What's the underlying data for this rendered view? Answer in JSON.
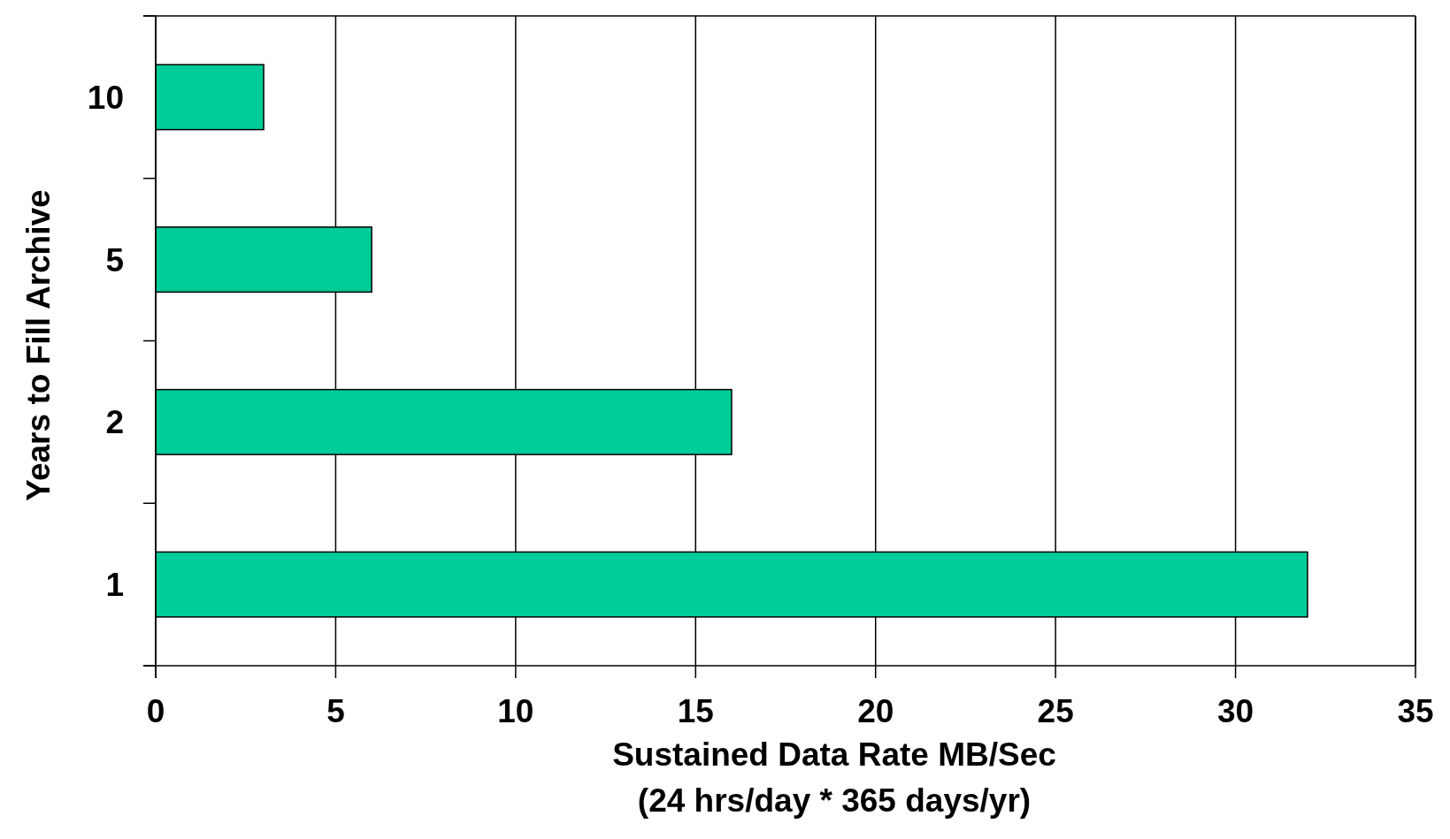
{
  "chart_data": {
    "type": "bar",
    "orientation": "horizontal",
    "categories": [
      "10",
      "5",
      "2",
      "1"
    ],
    "values": [
      3,
      6,
      16,
      32
    ],
    "color": "#00cc99",
    "xlim": [
      0,
      35
    ],
    "xticks": [
      0,
      5,
      10,
      15,
      20,
      25,
      30,
      35
    ],
    "xlabel": "Sustained Data Rate MB/Sec\n(24 hrs/day * 365 days/yr)",
    "ylabel": "Years to Fill Archive",
    "grid": "x"
  }
}
